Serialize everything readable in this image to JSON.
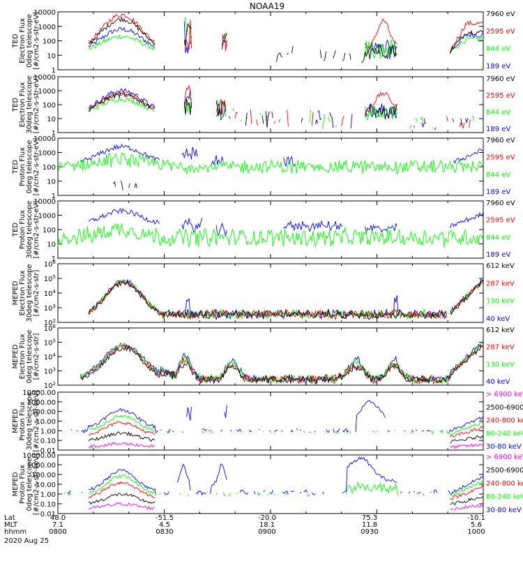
{
  "title": "NOAA19",
  "date_label": "2020 Aug 25",
  "axis_rows": [
    {
      "label": "Lat",
      "values": [
        "48.0",
        "-51.5",
        "-20.0",
        "75.3",
        "-10.1"
      ]
    },
    {
      "label": "MLT",
      "values": [
        "7.1",
        "4.5",
        "18.1",
        "11.8",
        "5.6"
      ]
    },
    {
      "label": "hhmm",
      "values": [
        "0800",
        "0830",
        "0900",
        "0930",
        "1000"
      ]
    }
  ],
  "colors": {
    "black": "#000000",
    "red": "#ff0000",
    "green": "#00ff00",
    "blue": "#0000ff",
    "magenta": "#ff00ff"
  },
  "chart_data": [
    {
      "type": "line",
      "title": "TED Electron Flux 0deg telescope",
      "ylabel": [
        "TED",
        "Electron Flux",
        "0deg telescope",
        "[#/cm2-s-str-eV]"
      ],
      "yscale": "log",
      "ylim": [
        1,
        10000
      ],
      "yticks": [
        "10000",
        "1000",
        "100",
        "10",
        "1"
      ],
      "x": [
        "0800",
        "0830",
        "0900",
        "0930",
        "1000"
      ],
      "series": [
        {
          "name": "7960 eV",
          "color": "black"
        },
        {
          "name": "2595 eV",
          "color": "red"
        },
        {
          "name": "844 eV",
          "color": "green"
        },
        {
          "name": "189 eV",
          "color": "blue"
        }
      ]
    },
    {
      "type": "line",
      "title": "TED Electron Flux 30deg telescope",
      "ylabel": [
        "TED",
        "Electron Flux",
        "30deg telescope",
        "[#/cm2-s-str-eV]"
      ],
      "yscale": "log",
      "ylim": [
        1,
        10000
      ],
      "yticks": [
        "10000",
        "1000",
        "100",
        "10",
        "1"
      ],
      "x": [
        "0800",
        "0830",
        "0900",
        "0930",
        "1000"
      ],
      "series": [
        {
          "name": "7960 eV",
          "color": "black"
        },
        {
          "name": "2595 eV",
          "color": "red"
        },
        {
          "name": "844 eV",
          "color": "green"
        },
        {
          "name": "189 eV",
          "color": "blue"
        }
      ]
    },
    {
      "type": "line",
      "title": "TED Proton Flux 0deg telescope",
      "ylabel": [
        "TED",
        "Proton Flux",
        "0deg telescope",
        "[#/cm2-s-str-eV]"
      ],
      "yscale": "log",
      "ylim": [
        1,
        10000
      ],
      "yticks": [
        "10000",
        "1000",
        "100",
        "10",
        "1"
      ],
      "x": [
        "0800",
        "0830",
        "0900",
        "0930",
        "1000"
      ],
      "series": [
        {
          "name": "7960 eV",
          "color": "black"
        },
        {
          "name": "2595 eV",
          "color": "red"
        },
        {
          "name": "844 eV",
          "color": "green"
        },
        {
          "name": "189 eV",
          "color": "blue"
        }
      ]
    },
    {
      "type": "line",
      "title": "TED Proton Flux 30deg telescope",
      "ylabel": [
        "TED",
        "Proton Flux",
        "30deg telescope",
        "[#/cm2-s-str-eV]"
      ],
      "yscale": "log",
      "ylim": [
        1,
        10000
      ],
      "yticks": [
        "10000",
        "1000",
        "100",
        "10",
        "1"
      ],
      "x": [
        "0800",
        "0830",
        "0900",
        "0930",
        "1000"
      ],
      "series": [
        {
          "name": "7960 eV",
          "color": "black"
        },
        {
          "name": "2595 eV",
          "color": "red"
        },
        {
          "name": "844 eV",
          "color": "green"
        },
        {
          "name": "189 eV",
          "color": "blue"
        }
      ]
    },
    {
      "type": "line",
      "title": "MEPED Electron Flux 30deg telescope",
      "ylabel": [
        "MEPED",
        "Electron Flux",
        "30deg telescope",
        "[#/cm2-s-str]"
      ],
      "yscale": "log",
      "ylim": [
        100,
        1000000
      ],
      "yticks": [
        "10^6",
        "10^5",
        "10^4",
        "10^3",
        "10^2"
      ],
      "x": [
        "0800",
        "0830",
        "0900",
        "0930",
        "1000"
      ],
      "series": [
        {
          "name": "612 keV",
          "color": "black"
        },
        {
          "name": "287 keV",
          "color": "red"
        },
        {
          "name": "130 keV",
          "color": "green"
        },
        {
          "name": "40 keV",
          "color": "blue"
        }
      ]
    },
    {
      "type": "line",
      "title": "MEPED Electron Flux 0deg telescope",
      "ylabel": [
        "MEPED",
        "Electron Flux",
        "0deg telescope",
        "[#/cm2-s-str]"
      ],
      "yscale": "log",
      "ylim": [
        100,
        1000000
      ],
      "yticks": [
        "10^6",
        "10^5",
        "10^4",
        "10^3",
        "10^2"
      ],
      "x": [
        "0800",
        "0830",
        "0900",
        "0930",
        "1000"
      ],
      "series": [
        {
          "name": "612 keV",
          "color": "black"
        },
        {
          "name": "287 keV",
          "color": "red"
        },
        {
          "name": "130 keV",
          "color": "green"
        },
        {
          "name": "40 keV",
          "color": "blue"
        }
      ]
    },
    {
      "type": "line",
      "title": "MEPED Proton Flux 30deg telescope",
      "ylabel": [
        "MEPED",
        "Proton Flux",
        "30deg telescope",
        "[#/cm2-s-str-keV]"
      ],
      "yscale": "log",
      "ylim": [
        0.01,
        10000
      ],
      "yticks": [
        "10000.00",
        "1000.00",
        "100.00",
        "10.00",
        "1.00",
        "0.10",
        "0.01"
      ],
      "x": [
        "0800",
        "0830",
        "0900",
        "0930",
        "1000"
      ],
      "series": [
        {
          "name": "> 6900 keV",
          "color": "magenta"
        },
        {
          "name": "2500-6900",
          "color": "black"
        },
        {
          "name": "240-800 keV",
          "color": "red"
        },
        {
          "name": "80-240 keV",
          "color": "green"
        },
        {
          "name": "30-80 keV",
          "color": "blue"
        }
      ]
    },
    {
      "type": "line",
      "title": "MEPED Proton Flux 0deg telescope",
      "ylabel": [
        "MEPED",
        "Proton Flux",
        "0deg telescope",
        "[#/cm2-s-str-keV]"
      ],
      "yscale": "log",
      "ylim": [
        0.01,
        10000
      ],
      "yticks": [
        "10000.00",
        "1000.00",
        "100.00",
        "10.00",
        "1.00",
        "0.10",
        "0.01"
      ],
      "x": [
        "0800",
        "0830",
        "0900",
        "0930",
        "1000"
      ],
      "series": [
        {
          "name": "> 6900 keV",
          "color": "magenta"
        },
        {
          "name": "2500-6900",
          "color": "black"
        },
        {
          "name": "240-800 keV",
          "color": "red"
        },
        {
          "name": "80-240 keV",
          "color": "green"
        },
        {
          "name": "30-80 keV",
          "color": "blue"
        }
      ]
    }
  ]
}
